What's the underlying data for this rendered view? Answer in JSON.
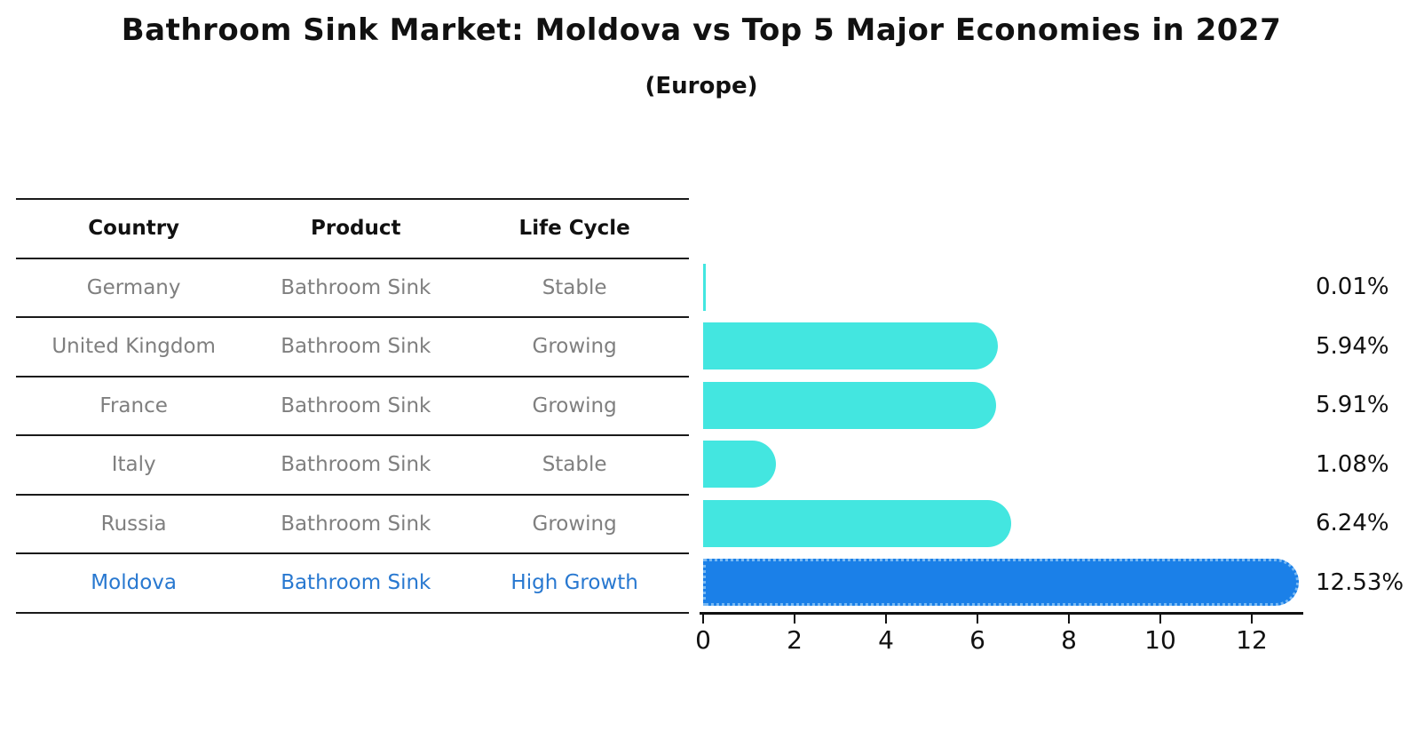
{
  "title": "Bathroom Sink Market: Moldova vs Top 5 Major Economies in 2027",
  "subtitle": "(Europe)",
  "table": {
    "headers": {
      "country": "Country",
      "product": "Product",
      "life_cycle": "Life Cycle"
    },
    "rows": [
      {
        "country": "Germany",
        "product": "Bathroom Sink",
        "life_cycle": "Stable",
        "highlight": false
      },
      {
        "country": "United Kingdom",
        "product": "Bathroom Sink",
        "life_cycle": "Growing",
        "highlight": false
      },
      {
        "country": "France",
        "product": "Bathroom Sink",
        "life_cycle": "Growing",
        "highlight": false
      },
      {
        "country": "Italy",
        "product": "Bathroom Sink",
        "life_cycle": "Stable",
        "highlight": false
      },
      {
        "country": "Russia",
        "product": "Bathroom Sink",
        "life_cycle": "Growing",
        "highlight": false
      },
      {
        "country": "Moldova",
        "product": "Bathroom Sink",
        "life_cycle": "High Growth",
        "highlight": true
      }
    ]
  },
  "chart_data": {
    "type": "bar",
    "orientation": "horizontal",
    "title": "Bathroom Sink Market: Moldova vs Top 5 Major Economies in 2027",
    "subtitle": "(Europe)",
    "categories": [
      "Germany",
      "United Kingdom",
      "France",
      "Italy",
      "Russia",
      "Moldova"
    ],
    "values": [
      0.01,
      5.94,
      5.91,
      1.08,
      6.24,
      12.53
    ],
    "value_labels": [
      "0.01%",
      "5.94%",
      "5.91%",
      "1.08%",
      "6.24%",
      "12.53%"
    ],
    "unit": "%",
    "x_ticks": [
      0,
      2,
      4,
      6,
      8,
      10,
      12
    ],
    "x_tick_labels": [
      "0",
      "2",
      "4",
      "6",
      "8",
      "10",
      "12"
    ],
    "xlim": [
      0,
      13.15
    ],
    "grid": false,
    "legend": "none",
    "bar_color": "#43e6e0",
    "highlight_color": "#1b80e8",
    "highlight_index": 5
  },
  "colors": {
    "background": "#ffffff",
    "text_primary": "#111111",
    "text_muted": "#7f7f7f",
    "highlight_text": "#2878d0",
    "bar_cyan": "#43e6e0",
    "bar_blue": "#1b80e8",
    "bar_blue_dots": "#79b9f3",
    "rule": "#1a1a1a"
  }
}
